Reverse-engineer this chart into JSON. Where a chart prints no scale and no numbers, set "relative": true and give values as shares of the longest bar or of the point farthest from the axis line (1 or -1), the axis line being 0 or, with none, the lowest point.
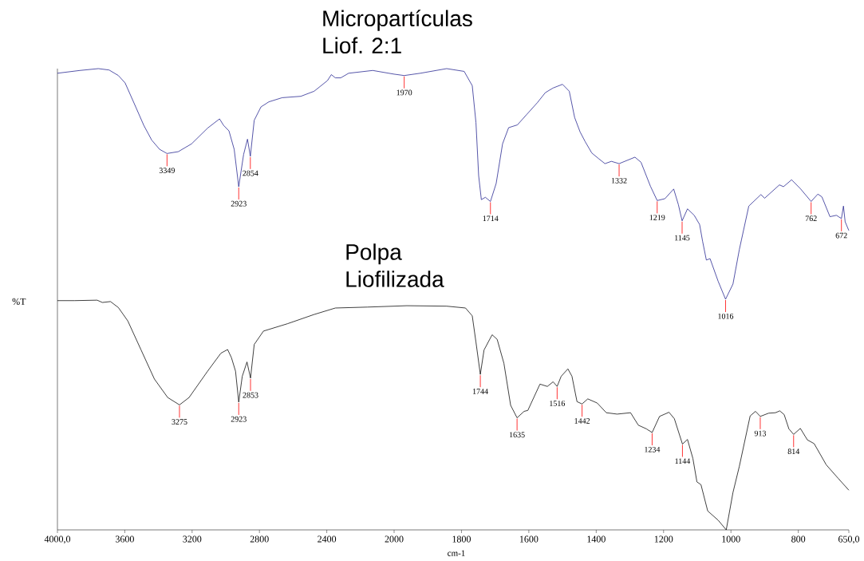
{
  "chart_data": [
    {
      "type": "line",
      "ylabel": "%T",
      "relative": true,
      "legend": false,
      "xlim": [
        4000,
        2000
      ],
      "xticks": [
        {
          "value": 4000,
          "label": "4000,0"
        },
        3600,
        3200,
        2800,
        2400,
        2000
      ],
      "series": [
        {
          "name": "Micropartículas Liof. 2:1",
          "color": "#1c1c8c",
          "x": [
            4000,
            3867,
            3757,
            3693,
            3638,
            3598,
            3535,
            3487,
            3440,
            3393,
            3349,
            3282,
            3203,
            3108,
            3037,
            3013,
            2981,
            2950,
            2923,
            2894,
            2871,
            2854,
            2831,
            2791,
            2744,
            2665,
            2554,
            2475,
            2396,
            2373,
            2349,
            2317,
            2270,
            2127,
            2000
          ],
          "values": [
            0.99,
            0.996,
            1.0,
            0.997,
            0.985,
            0.969,
            0.917,
            0.877,
            0.845,
            0.825,
            0.816,
            0.82,
            0.837,
            0.871,
            0.891,
            0.877,
            0.865,
            0.825,
            0.744,
            0.814,
            0.847,
            0.81,
            0.888,
            0.917,
            0.928,
            0.937,
            0.94,
            0.951,
            0.974,
            0.987,
            0.98,
            0.98,
            0.99,
            0.996,
            0.988
          ]
        },
        {
          "name": "Polpa Liofilizada",
          "color": "#000000",
          "x": [
            4000,
            3899,
            3764,
            3733,
            3685,
            3638,
            3582,
            3503,
            3424,
            3345,
            3275,
            3218,
            3108,
            3029,
            2989,
            2966,
            2942,
            2923,
            2902,
            2874,
            2853,
            2831,
            2776,
            2633,
            2475,
            2349,
            2159,
            2000
          ],
          "values": [
            0.497,
            0.497,
            0.498,
            0.493,
            0.495,
            0.482,
            0.453,
            0.39,
            0.327,
            0.287,
            0.271,
            0.287,
            0.344,
            0.383,
            0.391,
            0.373,
            0.344,
            0.277,
            0.333,
            0.364,
            0.329,
            0.402,
            0.431,
            0.447,
            0.467,
            0.481,
            0.483,
            0.485
          ]
        }
      ],
      "annotations": [
        {
          "text": "3349",
          "x": 3349,
          "y": 0.816
        },
        {
          "text": "2923",
          "x": 2923,
          "y": 0.744
        },
        {
          "text": "2854",
          "x": 2854,
          "y": 0.81
        },
        {
          "text": "3275",
          "x": 3275,
          "y": 0.271
        },
        {
          "text": "2923",
          "x": 2923,
          "y": 0.277
        },
        {
          "text": "2853",
          "x": 2853,
          "y": 0.329
        }
      ]
    },
    {
      "type": "line",
      "xlabel": "cm-1",
      "relative": true,
      "legend": false,
      "xlim": [
        2000,
        650
      ],
      "xticks": [
        1800,
        1600,
        1400,
        1200,
        1000,
        800,
        {
          "value": 650,
          "label": "650,0"
        }
      ],
      "series": [
        {
          "color": "#1c1c8c",
          "x": [
            2000,
            1970,
            1922,
            1844,
            1792,
            1768,
            1757,
            1749,
            1741,
            1729,
            1714,
            1697,
            1678,
            1660,
            1634,
            1607,
            1575,
            1551,
            1528,
            1500,
            1480,
            1464,
            1448,
            1433,
            1413,
            1393,
            1374,
            1355,
            1332,
            1285,
            1267,
            1239,
            1219,
            1196,
            1170,
            1156,
            1145,
            1129,
            1109,
            1093,
            1084,
            1073,
            1062,
            1038,
            1016,
            994,
            975,
            947,
            911,
            900,
            856,
            844,
            820,
            793,
            762,
            742,
            730,
            706,
            687,
            672,
            666,
            661,
            650
          ],
          "values": [
            0.988,
            0.985,
            0.99,
            1.0,
            0.994,
            0.963,
            0.883,
            0.768,
            0.716,
            0.721,
            0.712,
            0.751,
            0.837,
            0.872,
            0.878,
            0.9,
            0.926,
            0.948,
            0.958,
            0.966,
            0.951,
            0.894,
            0.863,
            0.842,
            0.817,
            0.805,
            0.794,
            0.799,
            0.794,
            0.808,
            0.797,
            0.745,
            0.714,
            0.718,
            0.739,
            0.705,
            0.67,
            0.696,
            0.682,
            0.662,
            0.625,
            0.585,
            0.588,
            0.539,
            0.5,
            0.533,
            0.608,
            0.702,
            0.727,
            0.719,
            0.748,
            0.744,
            0.759,
            0.739,
            0.712,
            0.728,
            0.722,
            0.679,
            0.682,
            0.675,
            0.702,
            0.668,
            0.649
          ]
        },
        {
          "color": "#000000",
          "x": [
            2000,
            1962,
            1844,
            1788,
            1768,
            1757,
            1744,
            1733,
            1709,
            1694,
            1674,
            1654,
            1635,
            1614,
            1603,
            1567,
            1545,
            1528,
            1516,
            1504,
            1484,
            1472,
            1457,
            1442,
            1425,
            1397,
            1370,
            1338,
            1298,
            1275,
            1251,
            1234,
            1212,
            1184,
            1168,
            1144,
            1129,
            1113,
            1101,
            1089,
            1069,
            1038,
            1014,
            994,
            975,
            943,
            927,
            913,
            888,
            868,
            855,
            842,
            828,
            814,
            794,
            773,
            753,
            717,
            682,
            650
          ],
          "values": [
            0.485,
            0.486,
            0.485,
            0.481,
            0.464,
            0.407,
            0.337,
            0.39,
            0.423,
            0.413,
            0.361,
            0.27,
            0.243,
            0.257,
            0.259,
            0.316,
            0.311,
            0.321,
            0.311,
            0.333,
            0.349,
            0.333,
            0.278,
            0.273,
            0.284,
            0.275,
            0.254,
            0.251,
            0.254,
            0.227,
            0.219,
            0.211,
            0.246,
            0.255,
            0.241,
            0.186,
            0.196,
            0.155,
            0.104,
            0.098,
            0.041,
            0.021,
            0.0,
            0.081,
            0.138,
            0.247,
            0.257,
            0.246,
            0.253,
            0.254,
            0.258,
            0.25,
            0.219,
            0.207,
            0.22,
            0.195,
            0.187,
            0.141,
            0.112,
            0.086
          ]
        }
      ],
      "annotations": [
        {
          "text": "1970",
          "x": 1970,
          "y": 0.985
        },
        {
          "text": "1714",
          "x": 1714,
          "y": 0.712
        },
        {
          "text": "1332",
          "x": 1332,
          "y": 0.794
        },
        {
          "text": "1219",
          "x": 1219,
          "y": 0.714
        },
        {
          "text": "1145",
          "x": 1145,
          "y": 0.67
        },
        {
          "text": "1016",
          "x": 1016,
          "y": 0.5
        },
        {
          "text": "762",
          "x": 762,
          "y": 0.712
        },
        {
          "text": "672",
          "x": 672,
          "y": 0.675
        },
        {
          "text": "1744",
          "x": 1744,
          "y": 0.337
        },
        {
          "text": "1635",
          "x": 1635,
          "y": 0.243
        },
        {
          "text": "1516",
          "x": 1516,
          "y": 0.311
        },
        {
          "text": "1442",
          "x": 1442,
          "y": 0.273
        },
        {
          "text": "1234",
          "x": 1234,
          "y": 0.211
        },
        {
          "text": "1144",
          "x": 1144,
          "y": 0.186
        },
        {
          "text": "913",
          "x": 913,
          "y": 0.246
        },
        {
          "text": "814",
          "x": 814,
          "y": 0.207
        }
      ]
    }
  ]
}
